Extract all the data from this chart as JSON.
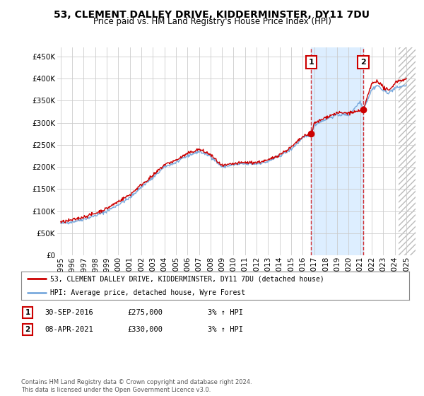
{
  "title": "53, CLEMENT DALLEY DRIVE, KIDDERMINSTER, DY11 7DU",
  "subtitle": "Price paid vs. HM Land Registry's House Price Index (HPI)",
  "legend_line1": "53, CLEMENT DALLEY DRIVE, KIDDERMINSTER, DY11 7DU (detached house)",
  "legend_line2": "HPI: Average price, detached house, Wyre Forest",
  "annotation1_label": "1",
  "annotation1_date": "30-SEP-2016",
  "annotation1_price": "£275,000",
  "annotation1_hpi": "3% ↑ HPI",
  "annotation2_label": "2",
  "annotation2_date": "08-APR-2021",
  "annotation2_price": "£330,000",
  "annotation2_hpi": "3% ↑ HPI",
  "footer": "Contains HM Land Registry data © Crown copyright and database right 2024.\nThis data is licensed under the Open Government Licence v3.0.",
  "hpi_color": "#7aaadd",
  "price_color": "#cc0000",
  "annotation_box_color": "#cc0000",
  "shade_color": "#ddeeff",
  "hatch_color": "#cccccc",
  "ylim": [
    0,
    470000
  ],
  "yticks": [
    0,
    50000,
    100000,
    150000,
    200000,
    250000,
    300000,
    350000,
    400000,
    450000
  ],
  "xlim_start": 1994.7,
  "xlim_end": 2025.8,
  "data_end_year": 2024.3,
  "years_start": 1995,
  "years_end": 2025,
  "sale1_year": 2016.75,
  "sale1_price": 275000,
  "sale2_year": 2021.27,
  "sale2_price": 330000,
  "background_color": "#ffffff",
  "grid_color": "#cccccc",
  "title_fontsize": 10,
  "subtitle_fontsize": 8.5,
  "tick_fontsize": 7.5
}
